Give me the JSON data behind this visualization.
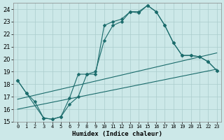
{
  "title": "",
  "xlabel": "Humidex (Indice chaleur)",
  "xlim": [
    -0.5,
    23.5
  ],
  "ylim": [
    15,
    24.5
  ],
  "yticks": [
    15,
    16,
    17,
    18,
    19,
    20,
    21,
    22,
    23,
    24
  ],
  "xticks": [
    0,
    1,
    2,
    3,
    4,
    5,
    6,
    7,
    8,
    9,
    10,
    11,
    12,
    13,
    14,
    15,
    16,
    17,
    18,
    19,
    20,
    21,
    22,
    23
  ],
  "bg_color": "#cce8e8",
  "grid_color": "#aacccc",
  "line_color": "#1a6b6b",
  "line1_x": [
    0,
    1,
    3,
    4,
    5,
    6,
    7,
    8,
    9,
    10,
    11,
    12,
    13,
    14,
    15,
    16,
    17,
    18,
    19,
    20,
    21,
    22,
    23
  ],
  "line1_y": [
    18.3,
    17.3,
    15.3,
    15.2,
    15.4,
    16.9,
    18.8,
    18.8,
    18.8,
    22.7,
    23.0,
    23.2,
    23.8,
    23.8,
    24.3,
    23.8,
    22.7,
    21.3,
    20.3,
    20.3,
    20.2,
    19.8,
    19.1
  ],
  "line2_x": [
    0,
    1,
    2,
    3,
    4,
    5,
    6,
    7,
    8,
    9,
    10,
    11,
    12,
    13,
    14,
    15,
    16,
    17,
    18,
    19,
    20,
    21,
    22,
    23
  ],
  "line2_y": [
    18.3,
    17.3,
    16.6,
    15.3,
    15.2,
    15.4,
    16.4,
    17.0,
    18.8,
    19.0,
    21.5,
    22.7,
    23.0,
    23.8,
    23.7,
    24.3,
    23.8,
    22.7,
    21.3,
    20.3,
    20.3,
    20.2,
    19.8,
    19.1
  ],
  "line3_x": [
    0,
    23
  ],
  "line3_y": [
    16.0,
    19.2
  ],
  "line4_x": [
    0,
    23
  ],
  "line4_y": [
    16.8,
    20.5
  ],
  "markersize": 2.5
}
